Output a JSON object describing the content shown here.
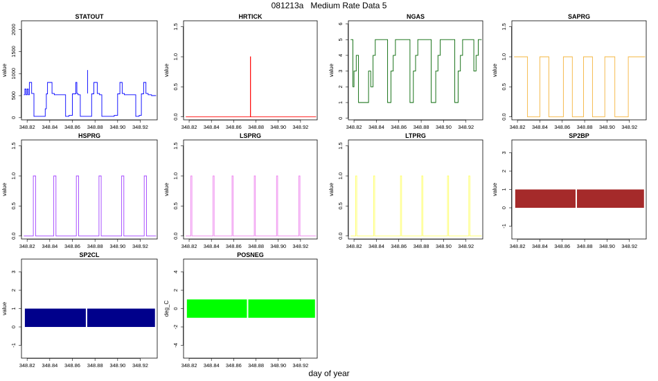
{
  "page": {
    "title": "081213a   Medium Rate Data 5",
    "xlabel": "day of year"
  },
  "chart_data": [
    {
      "type": "line",
      "title": "STATOUT",
      "ylabel": "value",
      "color": "#0000ff",
      "xlim": [
        348.815,
        348.935
      ],
      "ylim": [
        -50,
        2200
      ],
      "xticks": [
        348.82,
        348.84,
        348.86,
        348.88,
        348.9,
        348.92
      ],
      "xtick_labels": [
        "348.82",
        "348.84",
        "348.86",
        "348.88",
        "348.90",
        "348.92"
      ],
      "yticks": [
        0,
        500,
        1000,
        1500,
        2000
      ],
      "ytick_labels": [
        "0",
        "500",
        "1000",
        "1500",
        "2000"
      ],
      "x": [
        348.817,
        348.818,
        348.818,
        348.819,
        348.819,
        348.82,
        348.82,
        348.821,
        348.821,
        348.822,
        348.822,
        348.824,
        348.824,
        348.826,
        348.826,
        348.836,
        348.836,
        348.837,
        348.837,
        348.838,
        348.838,
        348.842,
        348.842,
        348.844,
        348.844,
        348.854,
        348.854,
        348.857,
        348.857,
        348.86,
        348.86,
        348.863,
        348.863,
        348.864,
        348.864,
        348.865,
        348.865,
        348.867,
        348.867,
        348.877,
        348.877,
        348.879,
        348.879,
        348.882,
        348.882,
        348.884,
        348.884,
        348.886,
        348.886,
        348.897,
        348.897,
        348.9,
        348.9,
        348.902,
        348.902,
        348.904,
        348.904,
        348.906,
        348.906,
        348.916,
        348.916,
        348.919,
        348.919,
        348.921,
        348.921,
        348.923,
        348.923,
        348.925,
        348.925,
        348.927,
        348.927,
        348.93,
        348.93,
        348.934
      ],
      "y": [
        520,
        520,
        650,
        650,
        520,
        520,
        650,
        650,
        520,
        520,
        800,
        800,
        550,
        550,
        30,
        30,
        200,
        200,
        540,
        540,
        800,
        800,
        550,
        550,
        520,
        520,
        30,
        30,
        50,
        50,
        540,
        540,
        800,
        800,
        550,
        550,
        520,
        520,
        30,
        30,
        540,
        540,
        800,
        800,
        550,
        550,
        520,
        520,
        30,
        30,
        50,
        50,
        540,
        540,
        800,
        800,
        550,
        550,
        520,
        520,
        30,
        30,
        50,
        50,
        540,
        540,
        800,
        800,
        550,
        550,
        520,
        520,
        500,
        500
      ],
      "spike": {
        "x": 348.8735,
        "y": 1080
      }
    },
    {
      "type": "line",
      "title": "HRTICK",
      "ylabel": "value",
      "color": "#ff0000",
      "xlim": [
        348.815,
        348.935
      ],
      "ylim": [
        -0.05,
        1.6
      ],
      "xticks": [
        348.82,
        348.84,
        348.86,
        348.88,
        348.9,
        348.92
      ],
      "xtick_labels": [
        "348.82",
        "348.84",
        "348.86",
        "348.88",
        "348.90",
        "348.92"
      ],
      "yticks": [
        0,
        0.5,
        1.0,
        1.5
      ],
      "ytick_labels": [
        "0.0",
        "0.5",
        "1.0",
        "1.5"
      ],
      "x": [
        348.817,
        348.875,
        348.875,
        348.8752,
        348.8752,
        348.934
      ],
      "y": [
        0,
        0,
        1,
        1,
        0,
        0
      ]
    },
    {
      "type": "line",
      "title": "NGAS",
      "ylabel": "value",
      "color": "#006400",
      "xlim": [
        348.815,
        348.935
      ],
      "ylim": [
        -0.1,
        6.2
      ],
      "xticks": [
        348.82,
        348.84,
        348.86,
        348.88,
        348.9,
        348.92
      ],
      "xtick_labels": [
        "348.82",
        "348.84",
        "348.86",
        "348.88",
        "348.90",
        "348.92"
      ],
      "yticks": [
        0,
        1,
        2,
        3,
        4,
        5,
        6
      ],
      "ytick_labels": [
        "0",
        "1",
        "2",
        "3",
        "4",
        "5",
        "6"
      ],
      "x": [
        348.817,
        348.819,
        348.819,
        348.82,
        348.82,
        348.822,
        348.822,
        348.824,
        348.824,
        348.833,
        348.833,
        348.835,
        348.835,
        348.837,
        348.837,
        348.839,
        348.839,
        348.85,
        348.85,
        348.853,
        348.853,
        348.855,
        348.855,
        348.857,
        348.857,
        348.87,
        348.87,
        348.873,
        348.873,
        348.875,
        348.875,
        348.877,
        348.877,
        348.889,
        348.889,
        348.893,
        348.893,
        348.895,
        348.895,
        348.897,
        348.897,
        348.91,
        348.91,
        348.913,
        348.913,
        348.915,
        348.915,
        348.917,
        348.917,
        348.927,
        348.927,
        348.929,
        348.929,
        348.931,
        348.931,
        348.934
      ],
      "y": [
        5,
        5,
        2,
        2,
        3,
        3,
        4,
        4,
        1,
        1,
        3,
        3,
        2,
        2,
        4,
        4,
        5,
        5,
        1,
        1,
        3,
        3,
        4,
        4,
        5,
        5,
        1,
        1,
        3,
        3,
        4,
        4,
        5,
        5,
        1,
        1,
        3,
        3,
        4,
        4,
        5,
        5,
        1,
        1,
        3,
        3,
        4,
        4,
        5,
        5,
        3,
        3,
        4,
        4,
        5,
        5
      ]
    },
    {
      "type": "line",
      "title": "SAPRG",
      "ylabel": "value",
      "color": "#f5b43c",
      "xlim": [
        348.815,
        348.935
      ],
      "ylim": [
        -0.05,
        1.6
      ],
      "xticks": [
        348.82,
        348.84,
        348.86,
        348.88,
        348.9,
        348.92
      ],
      "xtick_labels": [
        "348.82",
        "348.84",
        "348.86",
        "348.88",
        "348.90",
        "348.92"
      ],
      "yticks": [
        0,
        0.5,
        1.0,
        1.5
      ],
      "ytick_labels": [
        "0.0",
        "0.5",
        "1.0",
        "1.5"
      ],
      "x": [
        348.817,
        348.829,
        348.829,
        348.84,
        348.84,
        348.848,
        348.848,
        348.861,
        348.861,
        348.869,
        348.869,
        348.879,
        348.879,
        348.887,
        348.887,
        348.898,
        348.898,
        348.907,
        348.907,
        348.919,
        348.919,
        348.934
      ],
      "y": [
        1,
        1,
        0,
        0,
        1,
        1,
        0,
        0,
        1,
        1,
        0,
        0,
        1,
        1,
        0,
        0,
        1,
        1,
        0,
        0,
        1,
        1
      ]
    },
    {
      "type": "line",
      "title": "HSPRG",
      "ylabel": "value",
      "color": "#a040ff",
      "xlim": [
        348.815,
        348.935
      ],
      "ylim": [
        -0.05,
        1.6
      ],
      "xticks": [
        348.82,
        348.84,
        348.86,
        348.88,
        348.9,
        348.92
      ],
      "xtick_labels": [
        "348.82",
        "348.84",
        "348.86",
        "348.88",
        "348.90",
        "348.92"
      ],
      "yticks": [
        0,
        0.5,
        1.0,
        1.5
      ],
      "ytick_labels": [
        "0.0",
        "0.5",
        "1.0",
        "1.5"
      ],
      "pulses": [
        [
          348.8255,
          348.8275
        ],
        [
          348.8435,
          348.8455
        ],
        [
          348.8635,
          348.8655
        ],
        [
          348.8835,
          348.8855
        ],
        [
          348.9035,
          348.9055
        ],
        [
          348.9235,
          348.9255
        ]
      ],
      "x_range": [
        348.817,
        348.934
      ]
    },
    {
      "type": "line",
      "title": "LSPRG",
      "ylabel": "value",
      "color": "#ee82ee",
      "xlim": [
        348.815,
        348.935
      ],
      "ylim": [
        -0.05,
        1.6
      ],
      "xticks": [
        348.82,
        348.84,
        348.86,
        348.88,
        348.9,
        348.92
      ],
      "xtick_labels": [
        "348.82",
        "348.84",
        "348.86",
        "348.88",
        "348.90",
        "348.92"
      ],
      "yticks": [
        0,
        0.5,
        1.0,
        1.5
      ],
      "ytick_labels": [
        "0.0",
        "0.5",
        "1.0",
        "1.5"
      ],
      "pulses": [
        [
          348.8215,
          348.8225
        ],
        [
          348.8415,
          348.8425
        ],
        [
          348.8585,
          348.8595
        ],
        [
          348.8785,
          348.8795
        ],
        [
          348.8985,
          348.8995
        ],
        [
          348.9185,
          348.9195
        ]
      ],
      "x_range": [
        348.817,
        348.934
      ]
    },
    {
      "type": "line",
      "title": "LTPRG",
      "ylabel": "value",
      "color": "#ffff66",
      "xlim": [
        348.815,
        348.935
      ],
      "ylim": [
        -0.05,
        1.6
      ],
      "xticks": [
        348.82,
        348.84,
        348.86,
        348.88,
        348.9,
        348.92
      ],
      "xtick_labels": [
        "348.82",
        "348.84",
        "348.86",
        "348.88",
        "348.90",
        "348.92"
      ],
      "yticks": [
        0,
        0.5,
        1.0,
        1.5
      ],
      "ytick_labels": [
        "0.0",
        "0.5",
        "1.0",
        "1.5"
      ],
      "pulses": [
        [
          348.8215,
          348.8225
        ],
        [
          348.8375,
          348.8385
        ],
        [
          348.8615,
          348.8625
        ],
        [
          348.8805,
          348.8815
        ],
        [
          348.9035,
          348.9045
        ],
        [
          348.9225,
          348.9235
        ]
      ],
      "x_range": [
        348.817,
        348.934
      ]
    },
    {
      "type": "area",
      "title": "SP2BP",
      "ylabel": "value",
      "color": "#a52a2a",
      "xlim": [
        348.815,
        348.935
      ],
      "ylim": [
        -1.7,
        3.7
      ],
      "xticks": [
        348.82,
        348.84,
        348.86,
        348.88,
        348.9,
        348.92
      ],
      "xtick_labels": [
        "348.82",
        "348.84",
        "348.86",
        "348.88",
        "348.90",
        "348.92"
      ],
      "yticks": [
        -1,
        0,
        1,
        2,
        3
      ],
      "ytick_labels": [
        "-1",
        "0",
        "1",
        "2",
        "3"
      ],
      "band": [
        0,
        1
      ],
      "x_range": [
        348.818,
        348.933
      ],
      "gap": 348.8725
    },
    {
      "type": "area",
      "title": "SP2CL",
      "ylabel": "value",
      "color": "#00008b",
      "xlim": [
        348.815,
        348.935
      ],
      "ylim": [
        -1.7,
        3.7
      ],
      "xticks": [
        348.82,
        348.84,
        348.86,
        348.88,
        348.9,
        348.92
      ],
      "xtick_labels": [
        "348.82",
        "348.84",
        "348.86",
        "348.88",
        "348.90",
        "348.92"
      ],
      "yticks": [
        -1,
        0,
        1,
        2,
        3
      ],
      "ytick_labels": [
        "-1",
        "0",
        "1",
        "2",
        "3"
      ],
      "band": [
        0,
        1
      ],
      "x_range": [
        348.818,
        348.933
      ],
      "gap": 348.8725
    },
    {
      "type": "area",
      "title": "POSNEG",
      "ylabel": "deg_C",
      "color": "#00ff00",
      "xlim": [
        348.815,
        348.935
      ],
      "ylim": [
        -5.4,
        5.4
      ],
      "xticks": [
        348.82,
        348.84,
        348.86,
        348.88,
        348.9,
        348.92
      ],
      "xtick_labels": [
        "348.82",
        "348.84",
        "348.86",
        "348.88",
        "348.90",
        "348.92"
      ],
      "yticks": [
        -4,
        -2,
        0,
        2,
        4
      ],
      "ytick_labels": [
        "-4",
        "-2",
        "0",
        "2",
        "4"
      ],
      "band": [
        -1,
        1
      ],
      "x_range": [
        348.818,
        348.933
      ],
      "gap": 348.8725
    }
  ]
}
